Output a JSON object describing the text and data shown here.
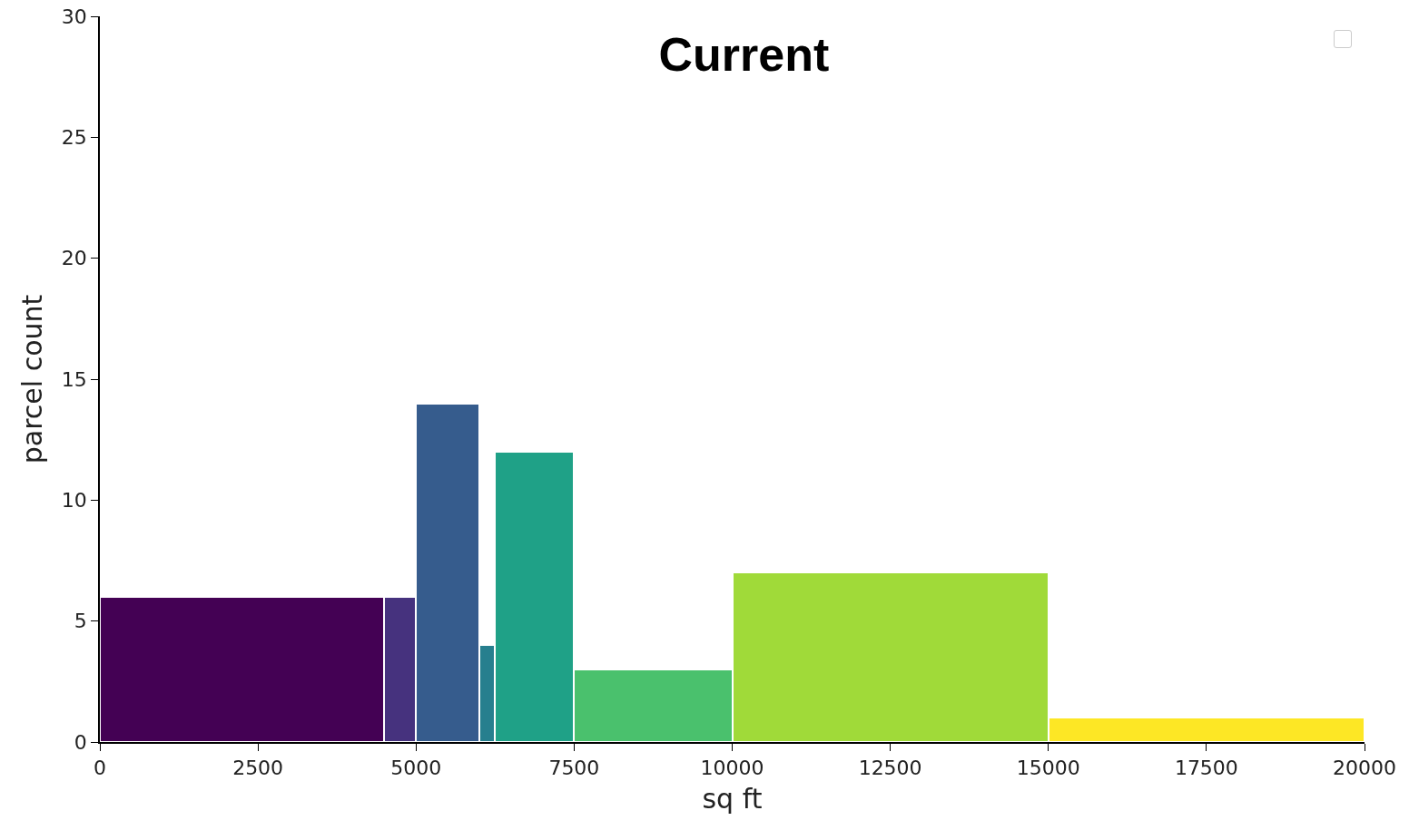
{
  "chart_data": {
    "type": "histogram",
    "title": "Current",
    "xlabel": "sq ft",
    "ylabel": "parcel count",
    "bins": [
      0,
      4500,
      5000,
      6000,
      6250,
      7500,
      10000,
      15000,
      20000
    ],
    "values": [
      6,
      6,
      14,
      4,
      12,
      3,
      7,
      1
    ],
    "colors": [
      "#440154",
      "#46327e",
      "#365c8d",
      "#277f8e",
      "#1fa187",
      "#4ac16d",
      "#a0da39",
      "#fde725"
    ],
    "xlim": [
      0,
      20000
    ],
    "xticks": [
      0,
      2500,
      5000,
      7500,
      10000,
      12500,
      15000,
      17500,
      20000
    ],
    "ylim": [
      0,
      30
    ],
    "yticks": [
      0,
      5,
      10,
      15,
      20,
      25,
      30
    ],
    "grid": false
  }
}
